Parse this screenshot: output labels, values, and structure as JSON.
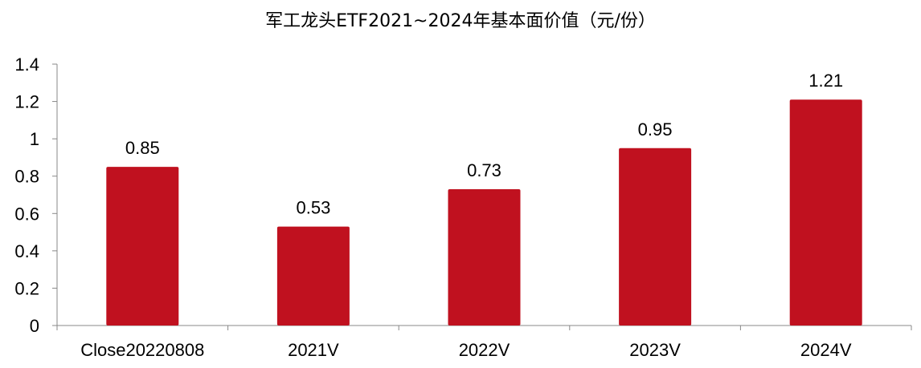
{
  "chart_data": {
    "type": "bar",
    "title": "军工龙头ETF2021~2024年基本面价值（元/份）",
    "categories": [
      "Close20220808",
      "2021V",
      "2022V",
      "2023V",
      "2024V"
    ],
    "values": [
      0.85,
      0.53,
      0.73,
      0.95,
      1.21
    ],
    "data_labels": [
      "0.85",
      "0.53",
      "0.73",
      "0.95",
      "1.21"
    ],
    "yticks": [
      "0",
      "0.2",
      "0.4",
      "0.6",
      "0.8",
      "1",
      "1.2",
      "1.4"
    ],
    "ylim": [
      0,
      1.4
    ],
    "xlabel": "",
    "ylabel": "",
    "grid": false,
    "legend": "none",
    "bar_color": "#C0111F"
  }
}
